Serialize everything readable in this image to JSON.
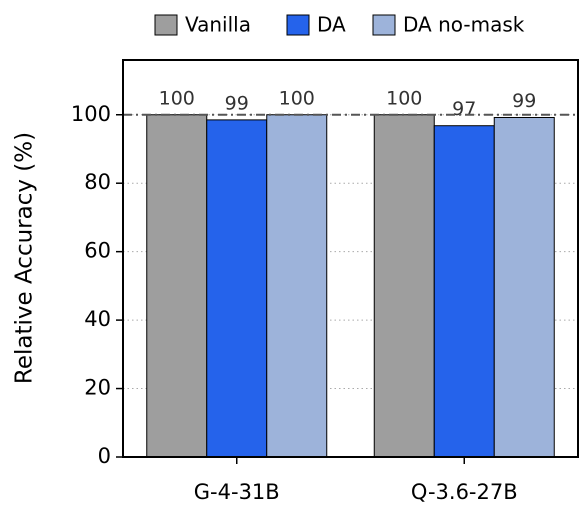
{
  "chart_data": {
    "type": "bar",
    "y_label": "Relative Accuracy (%)",
    "categories": [
      "G-4-31B",
      "Q-3.6-27B"
    ],
    "series": [
      {
        "name": "Vanilla",
        "color": "#9e9e9e",
        "values": [
          100,
          100
        ],
        "value_labels": [
          "100",
          "100"
        ]
      },
      {
        "name": "DA",
        "color": "#2563eb",
        "values": [
          98.5,
          96.8
        ],
        "value_labels": [
          "99",
          "97"
        ]
      },
      {
        "name": "DA no-mask",
        "color": "#9db3da",
        "values": [
          100,
          99.2
        ],
        "value_labels": [
          "100",
          "99"
        ]
      }
    ],
    "ylim": [
      0,
      116
    ],
    "yticks": [
      0,
      20,
      40,
      60,
      80,
      100
    ],
    "grid": true,
    "hline": 100,
    "legend": "top"
  }
}
